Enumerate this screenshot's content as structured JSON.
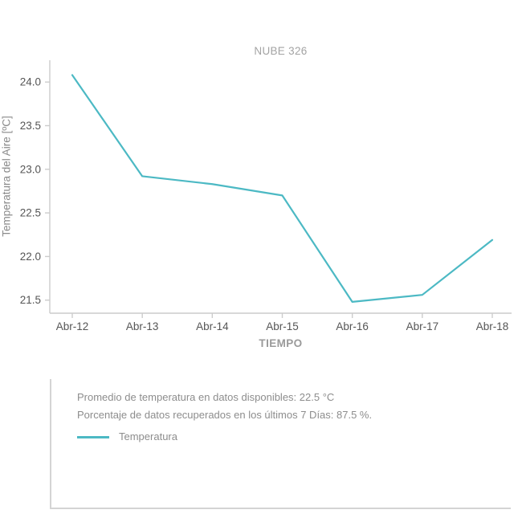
{
  "chart_data": {
    "type": "line",
    "title": "NUBE 326",
    "xlabel": "TIEMPO",
    "ylabel": "Temperatura del Aire [ºC]",
    "categories": [
      "Abr-12",
      "Abr-13",
      "Abr-14",
      "Abr-15",
      "Abr-16",
      "Abr-17",
      "Abr-18"
    ],
    "series": [
      {
        "name": "Temperatura",
        "values": [
          24.08,
          22.92,
          22.83,
          22.7,
          21.48,
          21.56,
          22.19
        ],
        "color": "#4cb9c4"
      }
    ],
    "ylim": [
      21.35,
      24.25
    ],
    "yticks": [
      21.5,
      22.0,
      22.5,
      23.0,
      23.5,
      24.0
    ],
    "grid": false,
    "legend_position": "bottom-info-box"
  },
  "info_box": {
    "line1": "Promedio de temperatura en datos disponibles: 22.5 °C",
    "line2": "Porcentaje de datos recuperados en los últimos 7 Días: 87.5 %.",
    "legend_label": "Temperatura"
  },
  "colors": {
    "line": "#4cb9c4",
    "axis": "#cccccc",
    "tick_label": "#555555",
    "muted_text": "#8d8d8d"
  }
}
